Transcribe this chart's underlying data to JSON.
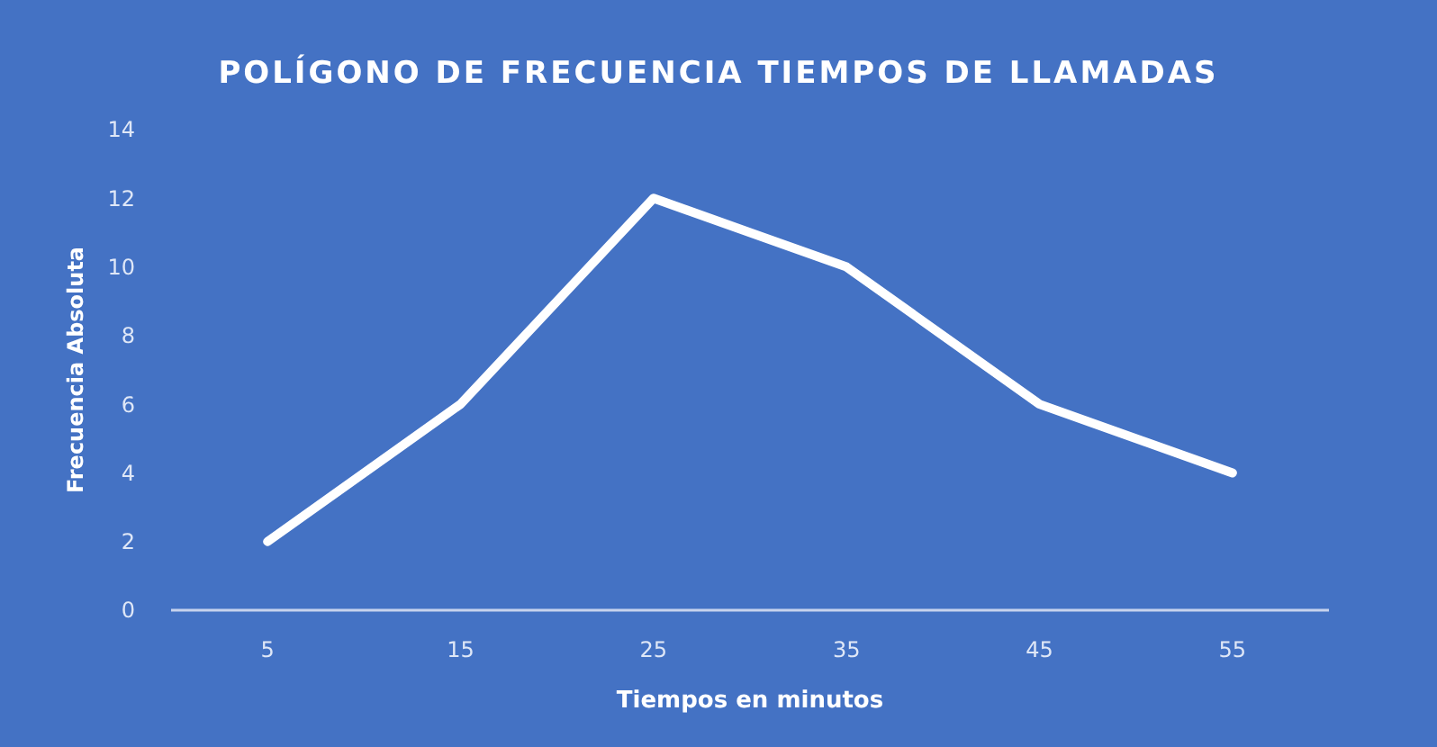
{
  "chart_data": {
    "type": "line",
    "title": "POLÍGONO DE FRECUENCIA TIEMPOS DE LLAMADAS",
    "xlabel": "Tiempos en minutos",
    "ylabel": "Frecuencia Absoluta",
    "categories": [
      "5",
      "15",
      "25",
      "35",
      "45",
      "55"
    ],
    "series": [
      {
        "color": "#ffffff",
        "values": [
          2,
          6,
          12,
          10,
          6,
          4
        ]
      }
    ],
    "ylim": [
      0,
      14
    ],
    "yticks": [
      0,
      2,
      4,
      6,
      8,
      10,
      12,
      14
    ],
    "line_style": "solid"
  }
}
